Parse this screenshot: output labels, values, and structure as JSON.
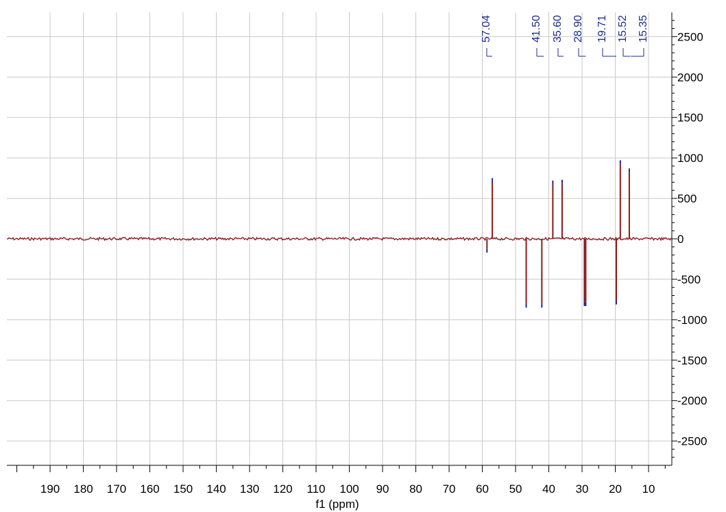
{
  "chart_data": {
    "type": "line",
    "title": "",
    "xlabel": "f1 (ppm)",
    "ylabel": "",
    "xlim": [
      203,
      3
    ],
    "ylim": [
      -2800,
      2800
    ],
    "x_reversed": true,
    "grid": true,
    "y_axis_side": "right",
    "xticks": [
      190,
      180,
      170,
      160,
      150,
      140,
      130,
      120,
      110,
      100,
      90,
      80,
      70,
      60,
      50,
      40,
      30,
      20,
      10
    ],
    "yticks": [
      2500,
      2000,
      1500,
      1000,
      500,
      0,
      -500,
      -1000,
      -1500,
      -2000,
      -2500
    ],
    "colors": {
      "spectrum": "#8b1a1a",
      "peak_marker": "#1a2d8c",
      "grid": "#c8c8c8"
    },
    "series": [
      {
        "peaks": [
          {
            "x": 58.6,
            "y": -120
          },
          {
            "x": 57.0,
            "y": 700
          },
          {
            "x": 46.8,
            "y": -800
          },
          {
            "x": 42.1,
            "y": -800
          },
          {
            "x": 38.8,
            "y": 670
          },
          {
            "x": 36.0,
            "y": 680
          },
          {
            "x": 29.3,
            "y": -780
          },
          {
            "x": 28.9,
            "y": -780
          },
          {
            "x": 19.7,
            "y": -760
          },
          {
            "x": 18.5,
            "y": 920
          },
          {
            "x": 15.8,
            "y": 820
          }
        ]
      }
    ],
    "peak_labels": [
      {
        "text": "57.04",
        "x": 57.04
      },
      {
        "text": "41.50",
        "x": 41.5
      },
      {
        "text": "35.60",
        "x": 35.6
      },
      {
        "text": "28.90",
        "x": 28.9
      },
      {
        "text": "19.71",
        "x": 19.71
      },
      {
        "text": "15.52",
        "x": 15.52
      },
      {
        "text": "15.35",
        "x": 15.35
      }
    ]
  }
}
